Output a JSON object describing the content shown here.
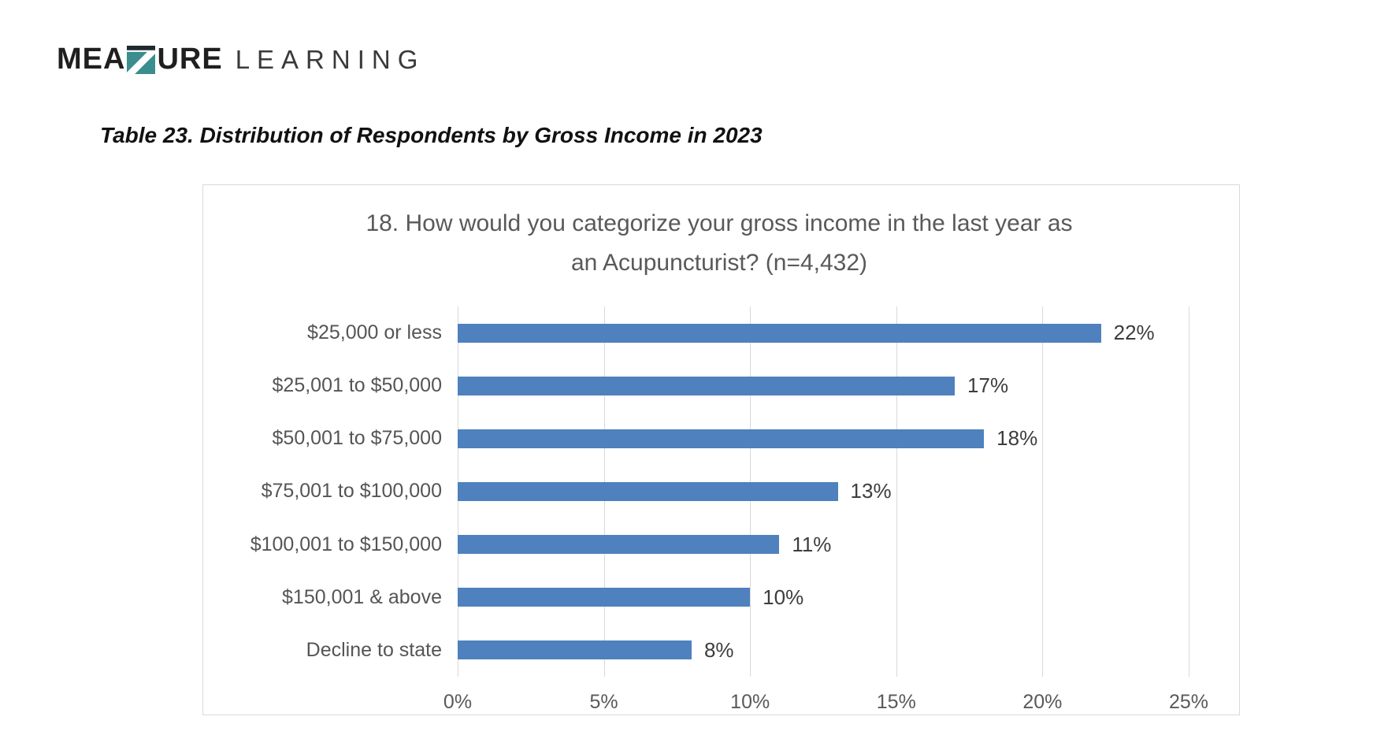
{
  "logo": {
    "word_bold_prefix": "MEA",
    "word_bold_suffix": "URE",
    "word_light": "LEARNING",
    "z_mark_teal": "#3B8D8E",
    "z_mark_dark": "#1E2A32"
  },
  "document": {
    "table_caption": "Table 23. Distribution of Respondents by Gross Income in 2023"
  },
  "chart_data": {
    "type": "bar",
    "orientation": "horizontal",
    "title_lines": [
      "18. How would you categorize your gross income in the last year as",
      "an Acupuncturist? (n=4,432)"
    ],
    "categories": [
      "$25,000 or less",
      "$25,001 to $50,000",
      "$50,001 to $75,000",
      "$75,001 to $100,000",
      "$100,001 to $150,000",
      "$150,001 & above",
      "Decline to state"
    ],
    "values": [
      22,
      17,
      18,
      13,
      11,
      10,
      8
    ],
    "value_labels": [
      "22%",
      "17%",
      "18%",
      "13%",
      "11%",
      "10%",
      "8%"
    ],
    "xlabel": "",
    "ylabel": "",
    "xlim": [
      0,
      25
    ],
    "x_tick_values": [
      0,
      5,
      10,
      15,
      20,
      25
    ],
    "x_tick_labels": [
      "0%",
      "5%",
      "10%",
      "15%",
      "20%",
      "25%"
    ],
    "grid": "vertical-gridlines-on",
    "legend": "none",
    "bar_color": "#4E81BD",
    "grid_color": "#D9D9D9",
    "title_color": "#595959",
    "category_label_color": "#555555",
    "value_label_color": "#3D3D3D",
    "axis_label_color": "#595959"
  }
}
